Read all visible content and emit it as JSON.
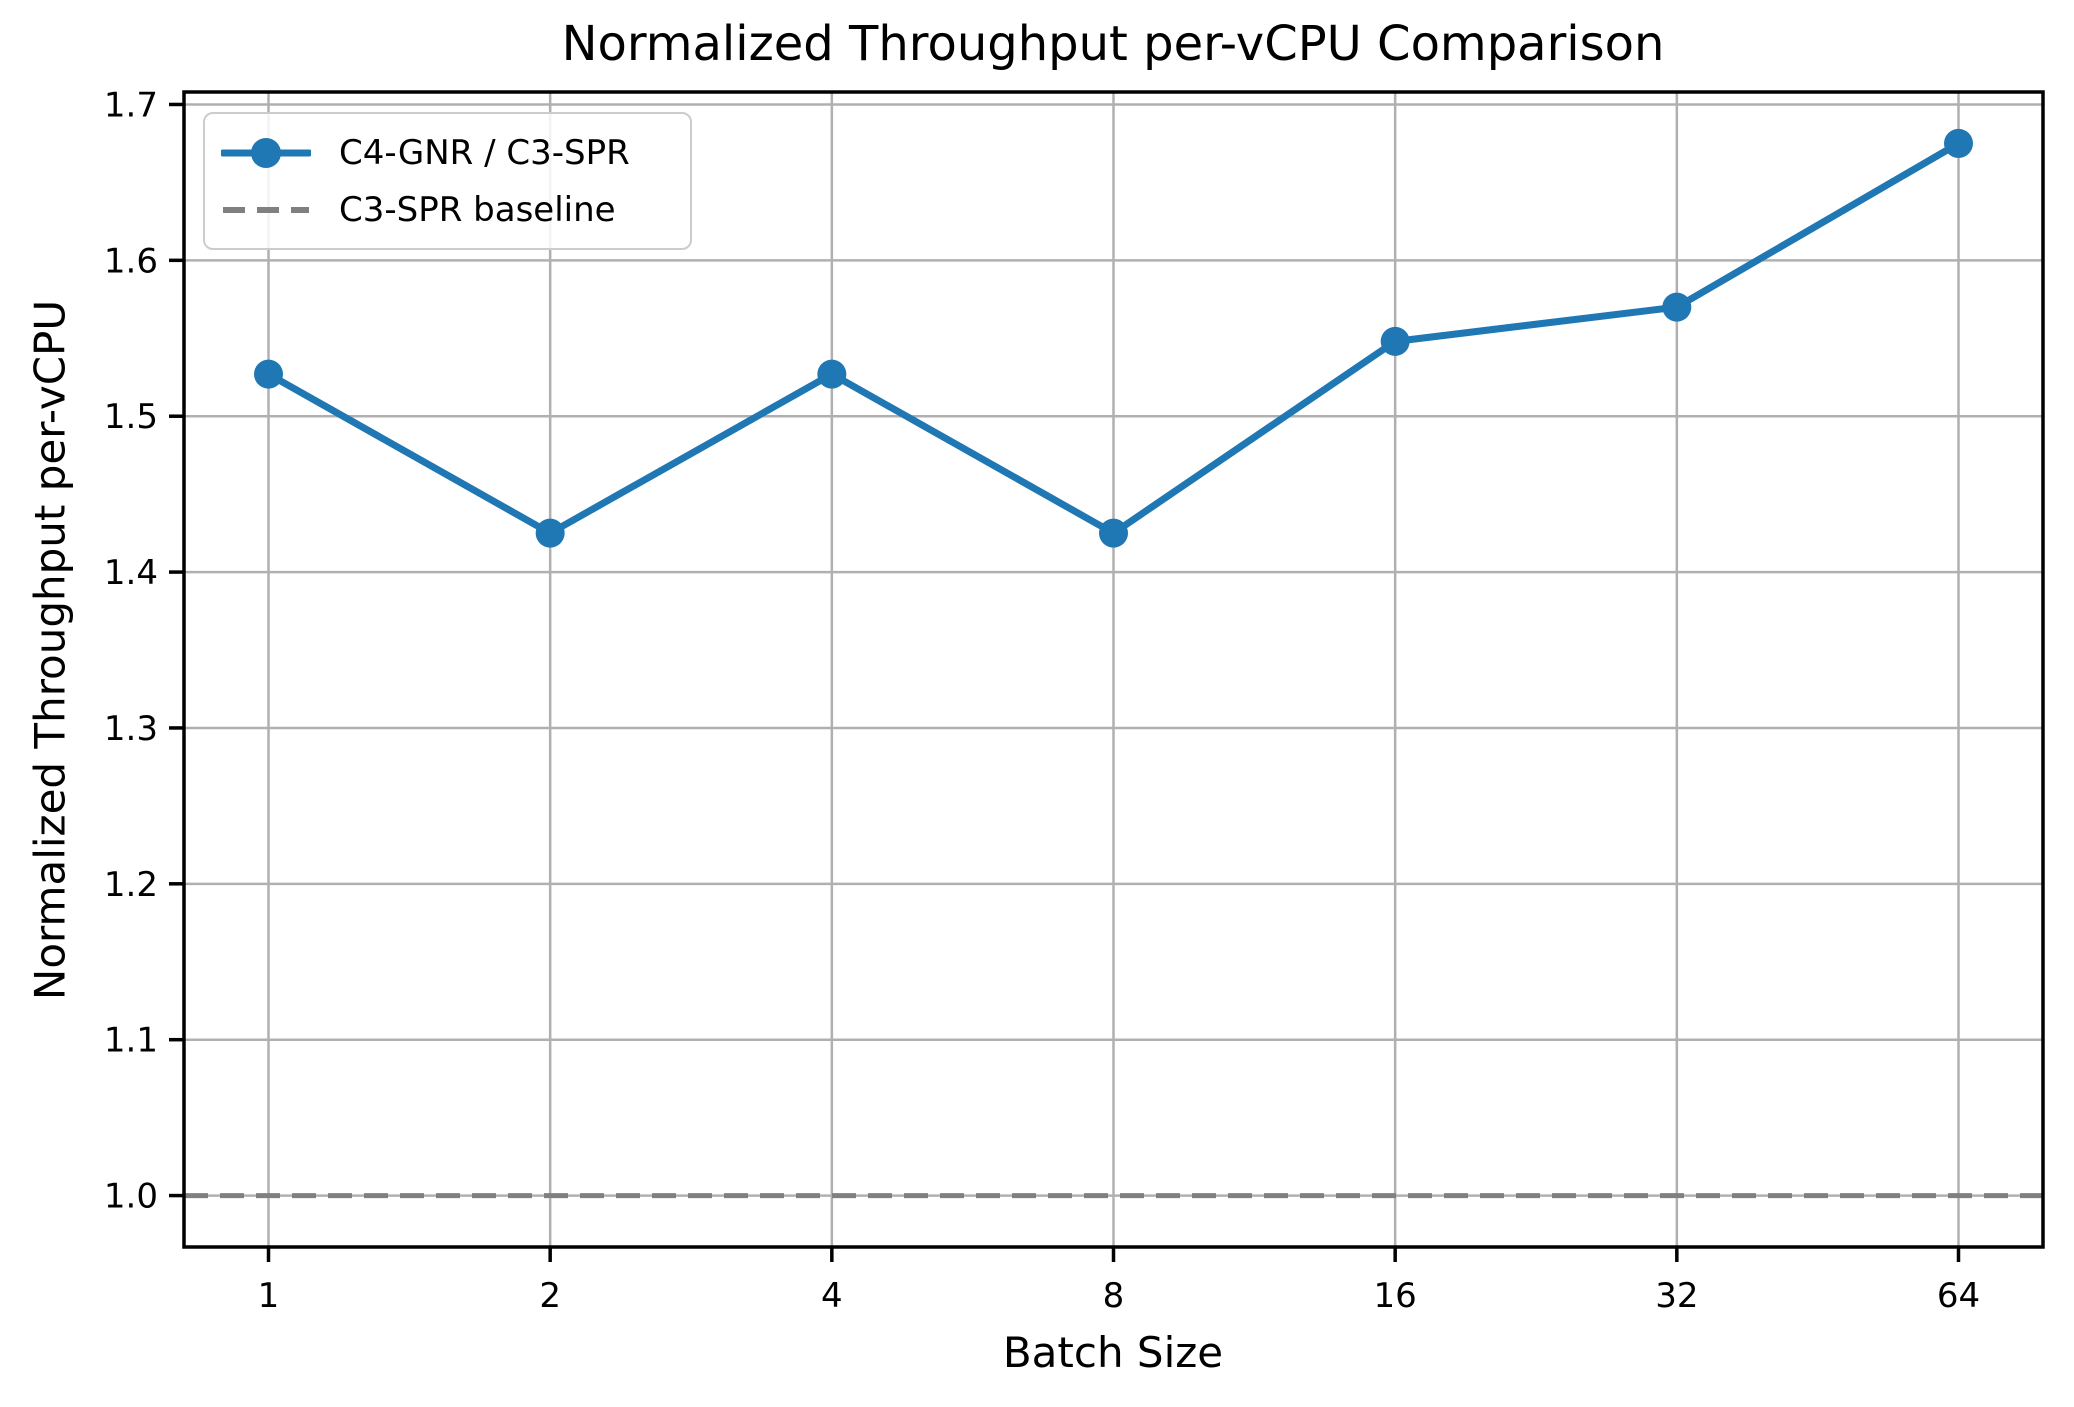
{
  "chart_data": {
    "type": "line",
    "title": "Normalized Throughput per-vCPU Comparison",
    "xlabel": "Batch Size",
    "ylabel": "Normalized Throughput per-vCPU",
    "x_categories": [
      "1",
      "2",
      "4",
      "8",
      "16",
      "32",
      "64"
    ],
    "x_scale": "log2-categorical",
    "series": [
      {
        "name": "C4-GNR / C3-SPR",
        "color": "#1f77b4",
        "marker": "circle",
        "values": [
          1.527,
          1.425,
          1.527,
          1.425,
          1.548,
          1.57,
          1.675
        ]
      }
    ],
    "baseline": {
      "label": "C3-SPR baseline",
      "value": 1.0,
      "color": "#808080",
      "style": "dashed"
    },
    "y_ticks": [
      1.0,
      1.1,
      1.2,
      1.3,
      1.4,
      1.5,
      1.6,
      1.7
    ],
    "ylim": [
      0.967,
      1.708
    ],
    "grid": true,
    "legend_position": "upper left",
    "colors": {
      "grid": "#b0b0b0",
      "spine": "#000000",
      "text": "#000000",
      "background": "#ffffff"
    }
  }
}
